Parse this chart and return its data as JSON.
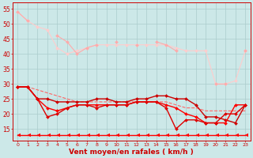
{
  "x": [
    0,
    1,
    2,
    3,
    4,
    5,
    6,
    7,
    8,
    9,
    10,
    11,
    12,
    13,
    14,
    15,
    16,
    17,
    18,
    19,
    20,
    21,
    22,
    23
  ],
  "lines": [
    {
      "y": [
        54,
        51,
        null,
        null,
        46,
        44,
        40,
        42,
        43,
        null,
        44,
        null,
        43,
        null,
        44,
        43,
        41,
        null,
        null,
        null,
        30,
        30,
        null,
        41
      ],
      "color": "#ffaaaa",
      "lw": 0.8,
      "marker": "D",
      "ms": 2.0,
      "zorder": 3
    },
    {
      "y": [
        54,
        51,
        49,
        48,
        42,
        40,
        41,
        42,
        43,
        43,
        43,
        43,
        43,
        43,
        43,
        43,
        42,
        41,
        41,
        41,
        30,
        30,
        31,
        41
      ],
      "color": "#ffcccc",
      "lw": 0.8,
      "marker": "D",
      "ms": 2.0,
      "zorder": 2
    },
    {
      "y": [
        29,
        29,
        28,
        27,
        26,
        25,
        24,
        24,
        24,
        24,
        24,
        24,
        24,
        24,
        24,
        24,
        23,
        22,
        22,
        21,
        21,
        21,
        21,
        21
      ],
      "color": "#ff6666",
      "lw": 0.8,
      "marker": null,
      "ms": 0,
      "zorder": 4,
      "linestyle": "--"
    },
    {
      "y": [
        29,
        29,
        25,
        25,
        24,
        24,
        24,
        24,
        25,
        25,
        24,
        24,
        25,
        25,
        26,
        26,
        25,
        25,
        23,
        19,
        19,
        18,
        17,
        23
      ],
      "color": "#cc0000",
      "lw": 1.0,
      "marker": "D",
      "ms": 2.0,
      "zorder": 5
    },
    {
      "y": [
        29,
        29,
        25,
        22,
        21,
        22,
        23,
        23,
        23,
        23,
        23,
        23,
        24,
        24,
        24,
        23,
        22,
        20,
        19,
        17,
        17,
        17,
        23,
        23
      ],
      "color": "#ff0000",
      "lw": 1.0,
      "marker": "D",
      "ms": 2.0,
      "zorder": 6
    },
    {
      "y": [
        29,
        29,
        25,
        19,
        20,
        22,
        23,
        23,
        22,
        23,
        23,
        23,
        24,
        24,
        24,
        22,
        15,
        18,
        18,
        17,
        17,
        20,
        20,
        23
      ],
      "color": "#dd0000",
      "lw": 1.0,
      "marker": "D",
      "ms": 2.0,
      "zorder": 7
    },
    {
      "y": [
        13,
        13,
        13,
        13,
        13,
        13,
        13,
        13,
        13,
        13,
        13,
        13,
        13,
        13,
        13,
        13,
        13,
        13,
        13,
        13,
        13,
        13,
        13,
        13
      ],
      "color": "#ff0000",
      "lw": 1.0,
      "marker": 4,
      "ms": 3.5,
      "zorder": 8
    }
  ],
  "ylim": [
    11,
    57
  ],
  "yticks": [
    15,
    20,
    25,
    30,
    35,
    40,
    45,
    50,
    55
  ],
  "xlabel": "Vent moyen/en rafales ( km/h )",
  "xlabel_color": "#cc0000",
  "xlabel_fontsize": 6.5,
  "xtick_fontsize": 4.5,
  "ytick_fontsize": 5.5,
  "background_color": "#cce8e8",
  "grid_color": "#aacccc",
  "tick_color": "#cc0000",
  "figw": 3.2,
  "figh": 2.0,
  "dpi": 100
}
